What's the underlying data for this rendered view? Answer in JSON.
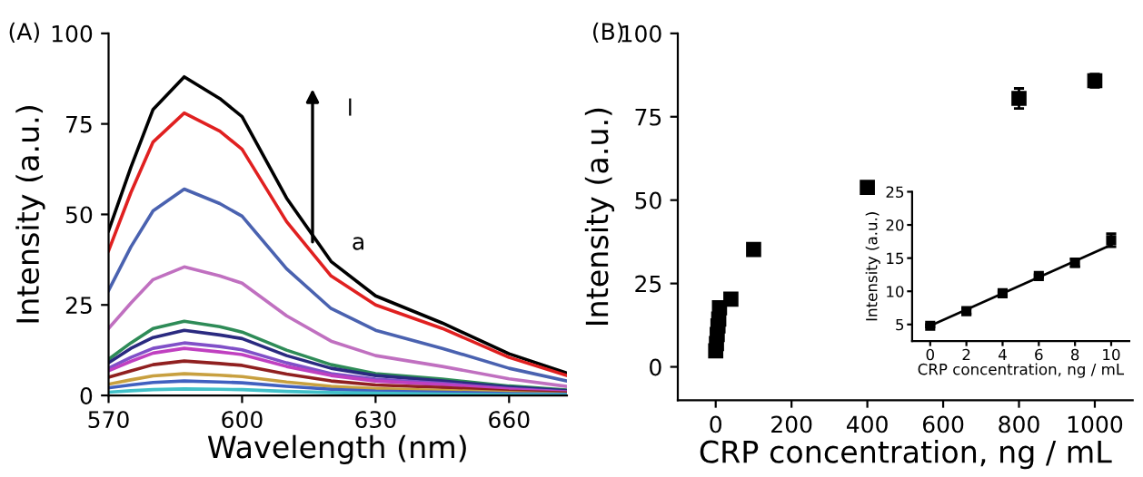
{
  "chart_data": [
    {
      "type": "line",
      "title": "(A)",
      "xlabel": "Wavelength (nm)",
      "ylabel": "Intensity (a.u.)",
      "x": [
        570,
        575,
        580,
        587,
        595,
        600,
        610,
        620,
        630,
        645,
        660,
        673
      ],
      "series": [
        {
          "color": "#000000",
          "values": [
            45.5,
            63,
            79,
            88,
            82,
            77,
            54.5,
            37,
            27.5,
            20,
            11.5,
            6.2
          ]
        },
        {
          "color": "#e02020",
          "values": [
            40,
            56,
            70,
            78,
            73,
            68,
            48,
            33,
            25,
            18.5,
            10.5,
            5.5
          ]
        },
        {
          "color": "#4a62b0",
          "values": [
            29,
            41,
            51,
            57,
            53,
            49.5,
            35,
            24,
            18,
            13,
            7.5,
            4
          ]
        },
        {
          "color": "#c070c0",
          "values": [
            18.5,
            25.5,
            32,
            35.5,
            33,
            31,
            22,
            15,
            11,
            8,
            4.6,
            2.5
          ]
        },
        {
          "color": "#2e8b57",
          "values": [
            10,
            14.5,
            18.5,
            20.5,
            19,
            17.5,
            12.5,
            8.5,
            6,
            4.5,
            2.6,
            1.5
          ]
        },
        {
          "color": "#2a2a80",
          "values": [
            9,
            13,
            16,
            18,
            16.7,
            15.7,
            11,
            7.5,
            5.5,
            4,
            2.3,
            1.3
          ]
        },
        {
          "color": "#8050c8",
          "values": [
            7.5,
            10.5,
            13,
            14.5,
            13.5,
            12.6,
            9,
            6,
            4.5,
            3.3,
            1.9,
            1
          ]
        },
        {
          "color": "#c040c0",
          "values": [
            6.8,
            9.4,
            11.7,
            13,
            12,
            11.3,
            8,
            5.5,
            4,
            3,
            1.7,
            0.9
          ]
        },
        {
          "color": "#902020",
          "values": [
            5,
            6.8,
            8.5,
            9.5,
            8.8,
            8.3,
            5.9,
            4,
            2.9,
            2.2,
            1.2,
            0.7
          ]
        },
        {
          "color": "#c8a040",
          "values": [
            3.1,
            4.3,
            5.4,
            6,
            5.6,
            5.2,
            3.7,
            2.5,
            1.9,
            1.4,
            0.8,
            0.4
          ]
        },
        {
          "color": "#4060c0",
          "values": [
            2.1,
            2.9,
            3.6,
            4,
            3.7,
            3.5,
            2.5,
            1.7,
            1.2,
            0.9,
            0.5,
            0.3
          ]
        },
        {
          "color": "#40c0c8",
          "values": [
            0.9,
            1.3,
            1.6,
            1.8,
            1.7,
            1.6,
            1.1,
            0.8,
            0.6,
            0.4,
            0.2,
            0.1
          ]
        }
      ],
      "xlim": [
        570,
        673
      ],
      "ylim": [
        0,
        100
      ],
      "xticks": [
        570,
        600,
        630,
        660
      ],
      "yticks": [
        0,
        25,
        50,
        75,
        100
      ],
      "grid": false,
      "legend": false,
      "annotations": [
        "l",
        "a"
      ]
    },
    {
      "type": "scatter",
      "title": "(B)",
      "xlabel": "CRP concentration, ng / mL",
      "ylabel": "Intensity (a.u.)",
      "x": [
        0,
        2,
        4,
        6,
        8,
        10,
        40,
        100,
        400,
        800,
        1000
      ],
      "series": [
        {
          "color": "#000000",
          "values": [
            4.8,
            7,
            9.7,
            12.3,
            14.3,
            17.7,
            20.3,
            35.2,
            53.8,
            80.5,
            85.8
          ],
          "errors": [
            0.3,
            0.4,
            0.3,
            0.3,
            0.6,
            1,
            1.5,
            1.5,
            1,
            3,
            2
          ]
        }
      ],
      "xlim": [
        -100,
        1100
      ],
      "ylim": [
        -10,
        100
      ],
      "xticks": [
        0,
        200,
        400,
        600,
        800,
        1000
      ],
      "yticks": [
        0,
        25,
        50,
        75,
        100
      ],
      "marker": "square",
      "grid": false,
      "legend": false
    },
    {
      "type": "scatter",
      "xlabel": "CRP concentration, ng / mL",
      "ylabel": "Intensity (a.u.)",
      "x": [
        0,
        2,
        4,
        6,
        8,
        10
      ],
      "series": [
        {
          "color": "#000000",
          "marker": "square",
          "values": [
            4.8,
            7,
            9.7,
            12.3,
            14.3,
            17.7
          ],
          "errors": [
            0.2,
            0.4,
            0.2,
            0.2,
            0.6,
            1
          ]
        },
        {
          "type": "line",
          "color": "#000000",
          "marker": "none",
          "x": [
            0,
            10
          ],
          "values": [
            4.8,
            17
          ]
        }
      ],
      "xlim": [
        -1,
        11
      ],
      "ylim": [
        2.5,
        25
      ],
      "xticks": [
        0,
        2,
        4,
        6,
        8,
        10
      ],
      "yticks": [
        5,
        10,
        15,
        20,
        25
      ],
      "grid": false,
      "legend": false
    }
  ]
}
